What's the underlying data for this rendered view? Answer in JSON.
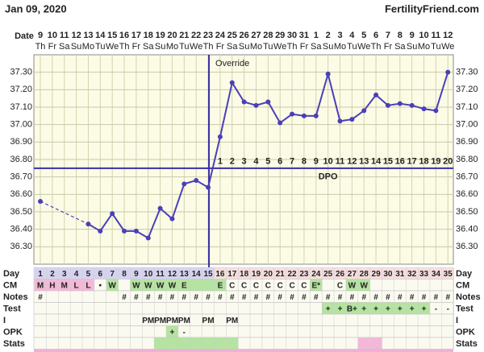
{
  "chart_data": {
    "type": "line",
    "title": "Jan 09, 2020",
    "site": "FertilityFriend.com",
    "date_label": "Date",
    "dates": [
      9,
      10,
      11,
      12,
      13,
      14,
      15,
      16,
      17,
      18,
      19,
      20,
      21,
      22,
      23,
      24,
      25,
      26,
      27,
      28,
      29,
      30,
      31,
      1,
      2,
      3,
      4,
      5,
      6,
      7,
      8,
      9,
      10,
      11,
      12
    ],
    "weekdays": [
      "Th",
      "Fr",
      "Sa",
      "Su",
      "Mo",
      "Tu",
      "We",
      "Th",
      "Fr",
      "Sa",
      "Su",
      "Mo",
      "Tu",
      "We",
      "Th",
      "Fr",
      "Sa",
      "Su",
      "Mo",
      "Tu",
      "We",
      "Th",
      "Fr",
      "Sa",
      "Su",
      "Mo",
      "Tu",
      "We",
      "Th",
      "Fr",
      "Sa",
      "Su",
      "Mo",
      "Tu",
      "We"
    ],
    "series": [
      {
        "color": "#4a3fb8",
        "values": [
          36.56,
          null,
          null,
          null,
          36.43,
          36.39,
          36.49,
          36.39,
          36.39,
          36.35,
          36.52,
          36.46,
          36.66,
          36.68,
          36.64,
          36.93,
          37.24,
          37.13,
          37.11,
          37.13,
          37.01,
          37.06,
          37.05,
          37.05,
          37.29,
          37.02,
          37.03,
          37.08,
          37.17,
          37.11,
          37.12,
          37.11,
          37.09,
          37.08,
          37.3
        ]
      }
    ],
    "coverline": 36.75,
    "override_label": "Override",
    "dpo_label": "DPO",
    "dpo": [
      1,
      2,
      3,
      4,
      5,
      6,
      7,
      8,
      9,
      10,
      11,
      12,
      13,
      14,
      15,
      16,
      17,
      18,
      19,
      20
    ],
    "ylim": [
      36.2,
      37.4
    ],
    "yticks": [
      {
        "value": 36.3,
        "label": "36.30"
      },
      {
        "value": 36.4,
        "label": "36.40"
      },
      {
        "value": 36.5,
        "label": "36.50"
      },
      {
        "value": 36.6,
        "label": "36.60"
      },
      {
        "value": 36.7,
        "label": "36.70"
      },
      {
        "value": 36.8,
        "label": "36.80"
      },
      {
        "value": 36.9,
        "label": "36.90"
      },
      {
        "value": 37.0,
        "label": "37.00"
      },
      {
        "value": 37.1,
        "label": "37.10"
      },
      {
        "value": 37.2,
        "label": "37.20"
      },
      {
        "value": 37.3,
        "label": "37.30"
      }
    ],
    "grid": true,
    "table": [
      {
        "label": "Day",
        "cells": [
          1,
          2,
          3,
          4,
          5,
          6,
          7,
          8,
          9,
          10,
          11,
          12,
          13,
          14,
          15,
          16,
          17,
          18,
          19,
          20,
          21,
          22,
          23,
          24,
          25,
          26,
          27,
          28,
          29,
          30,
          31,
          32,
          33,
          34,
          35
        ],
        "fills": [
          {
            "days": [
              1,
              15
            ],
            "color": "#d6d3f0"
          },
          {
            "days": [
              16,
              35
            ],
            "color": "#f5dede"
          }
        ]
      },
      {
        "label": "CM",
        "cells": [
          "M",
          "H",
          "M",
          "L",
          "L",
          "•",
          "W",
          null,
          "W",
          "W",
          "W",
          "W",
          "E",
          null,
          null,
          "E",
          "C",
          "C",
          "C",
          "C",
          "C",
          "C",
          "C",
          "E*",
          null,
          "C",
          "W",
          "W",
          null,
          null,
          null,
          null,
          null,
          null,
          null
        ],
        "fills": [
          {
            "days": [
              1,
              5
            ],
            "color": "#f3b8d8"
          },
          {
            "days": [
              7,
              7
            ],
            "color": "#b5e3a1"
          },
          {
            "days": [
              9,
              15
            ],
            "color": "#b5e3a1"
          },
          {
            "days": [
              16,
              16
            ],
            "color": "#b5e3a1"
          },
          {
            "days": [
              24,
              24
            ],
            "color": "#b5e3a1"
          },
          {
            "days": [
              27,
              28
            ],
            "color": "#b5e3a1"
          }
        ]
      },
      {
        "label": "Notes",
        "cells": [
          "#",
          null,
          null,
          null,
          null,
          null,
          null,
          "#",
          "#",
          "#",
          "#",
          "#",
          "#",
          "#",
          "#",
          "#",
          "#",
          "#",
          "#",
          "#",
          "#",
          "#",
          "#",
          "#",
          "#",
          "#",
          "#",
          "#",
          "#",
          "#",
          "#",
          "#",
          "#",
          "#",
          "#"
        ]
      },
      {
        "label": "Test",
        "cells": [
          null,
          null,
          null,
          null,
          null,
          null,
          null,
          null,
          null,
          null,
          null,
          null,
          null,
          null,
          null,
          null,
          null,
          null,
          null,
          null,
          null,
          null,
          null,
          null,
          "+",
          "+",
          "B+",
          "+",
          "+",
          "+",
          "+",
          "+",
          "+",
          "-",
          "-"
        ],
        "fills": [
          {
            "days": [
              25,
              33
            ],
            "color": "#b5e3a1"
          }
        ]
      },
      {
        "label": "I",
        "cells": [
          null,
          null,
          null,
          null,
          null,
          null,
          null,
          null,
          null,
          "PM",
          "PM",
          "PM",
          "PM",
          null,
          "PM",
          null,
          "PM",
          null,
          null,
          null,
          null,
          null,
          null,
          null,
          null,
          null,
          null,
          null,
          null,
          null,
          null,
          null,
          null,
          null,
          null
        ]
      },
      {
        "label": "OPK",
        "cells": [
          null,
          null,
          null,
          null,
          null,
          null,
          null,
          null,
          null,
          null,
          null,
          "+",
          "-",
          null,
          null,
          null,
          null,
          null,
          null,
          null,
          null,
          null,
          null,
          null,
          null,
          null,
          null,
          null,
          null,
          null,
          null,
          null,
          null,
          null,
          null
        ],
        "fills": [
          {
            "days": [
              12,
              12
            ],
            "color": "#b5e3a1"
          }
        ]
      },
      {
        "label": "Stats",
        "fills": [
          {
            "days": [
              11,
              17
            ],
            "color": "#b5e3a1"
          },
          {
            "days": [
              28,
              29
            ],
            "color": "#f3b8d8"
          }
        ]
      }
    ]
  }
}
